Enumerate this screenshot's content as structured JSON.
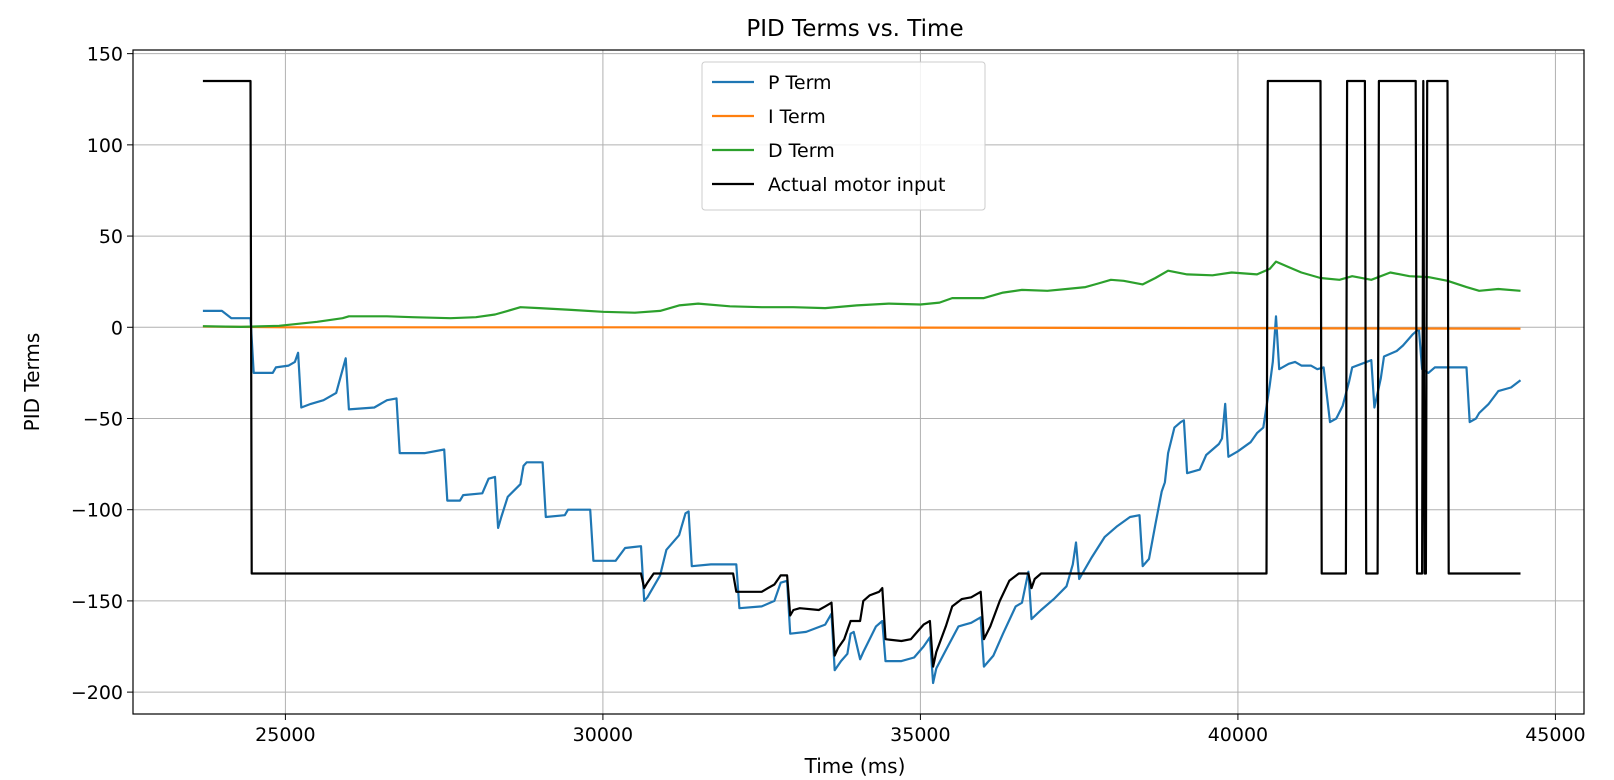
{
  "chart_data": {
    "type": "line",
    "title": "PID Terms vs. Time",
    "xlabel": "Time (ms)",
    "ylabel": "PID Terms",
    "xlim": [
      22600,
      45450
    ],
    "ylim": [
      -212,
      152
    ],
    "xticks": [
      25000,
      30000,
      35000,
      40000,
      45000
    ],
    "yticks": [
      150,
      100,
      50,
      0,
      -50,
      -100,
      -150,
      -200
    ],
    "grid": true,
    "legend_position": "upper center",
    "series": [
      {
        "name": "P Term",
        "color": "#1f77b4",
        "points": [
          [
            23700,
            9
          ],
          [
            24000,
            9
          ],
          [
            24150,
            5
          ],
          [
            24450,
            5
          ],
          [
            24500,
            -25
          ],
          [
            24800,
            -25
          ],
          [
            24850,
            -22
          ],
          [
            25050,
            -21
          ],
          [
            25150,
            -19
          ],
          [
            25200,
            -14
          ],
          [
            25250,
            -44
          ],
          [
            25400,
            -42
          ],
          [
            25600,
            -40
          ],
          [
            25800,
            -36
          ],
          [
            25950,
            -17
          ],
          [
            26000,
            -45
          ],
          [
            26400,
            -44
          ],
          [
            26600,
            -40
          ],
          [
            26750,
            -39
          ],
          [
            26800,
            -69
          ],
          [
            27200,
            -69
          ],
          [
            27500,
            -67
          ],
          [
            27550,
            -95
          ],
          [
            27750,
            -95
          ],
          [
            27800,
            -92
          ],
          [
            28100,
            -91
          ],
          [
            28200,
            -83
          ],
          [
            28300,
            -82
          ],
          [
            28350,
            -110
          ],
          [
            28400,
            -104
          ],
          [
            28500,
            -93
          ],
          [
            28700,
            -86
          ],
          [
            28750,
            -76
          ],
          [
            28800,
            -74
          ],
          [
            29050,
            -74
          ],
          [
            29100,
            -104
          ],
          [
            29400,
            -103
          ],
          [
            29450,
            -100
          ],
          [
            29800,
            -100
          ],
          [
            29850,
            -128
          ],
          [
            30200,
            -128
          ],
          [
            30350,
            -121
          ],
          [
            30600,
            -120
          ],
          [
            30650,
            -150
          ],
          [
            30700,
            -148
          ],
          [
            30900,
            -136
          ],
          [
            31000,
            -122
          ],
          [
            31200,
            -114
          ],
          [
            31300,
            -102
          ],
          [
            31350,
            -101
          ],
          [
            31400,
            -131
          ],
          [
            31700,
            -130
          ],
          [
            32100,
            -130
          ],
          [
            32150,
            -154
          ],
          [
            32500,
            -153
          ],
          [
            32700,
            -150
          ],
          [
            32800,
            -140
          ],
          [
            32900,
            -139
          ],
          [
            32950,
            -168
          ],
          [
            33200,
            -167
          ],
          [
            33500,
            -163
          ],
          [
            33600,
            -157
          ],
          [
            33650,
            -188
          ],
          [
            33750,
            -183
          ],
          [
            33850,
            -179
          ],
          [
            33900,
            -168
          ],
          [
            33950,
            -167
          ],
          [
            34050,
            -182
          ],
          [
            34100,
            -178
          ],
          [
            34300,
            -164
          ],
          [
            34400,
            -161
          ],
          [
            34450,
            -183
          ],
          [
            34700,
            -183
          ],
          [
            34900,
            -181
          ],
          [
            35050,
            -175
          ],
          [
            35150,
            -170
          ],
          [
            35200,
            -195
          ],
          [
            35250,
            -187
          ],
          [
            35400,
            -177
          ],
          [
            35600,
            -164
          ],
          [
            35700,
            -163
          ],
          [
            35800,
            -162
          ],
          [
            35950,
            -159
          ],
          [
            36000,
            -186
          ],
          [
            36150,
            -180
          ],
          [
            36300,
            -168
          ],
          [
            36500,
            -153
          ],
          [
            36600,
            -151
          ],
          [
            36700,
            -134
          ],
          [
            36750,
            -160
          ],
          [
            36900,
            -155
          ],
          [
            37100,
            -149
          ],
          [
            37300,
            -142
          ],
          [
            37400,
            -130
          ],
          [
            37450,
            -118
          ],
          [
            37500,
            -138
          ],
          [
            37700,
            -126
          ],
          [
            37900,
            -115
          ],
          [
            38100,
            -109
          ],
          [
            38300,
            -104
          ],
          [
            38450,
            -103
          ],
          [
            38500,
            -131
          ],
          [
            38600,
            -127
          ],
          [
            38700,
            -108
          ],
          [
            38800,
            -90
          ],
          [
            38850,
            -85
          ],
          [
            38900,
            -69
          ],
          [
            39000,
            -55
          ],
          [
            39100,
            -52
          ],
          [
            39150,
            -51
          ],
          [
            39200,
            -80
          ],
          [
            39400,
            -78
          ],
          [
            39500,
            -70
          ],
          [
            39700,
            -64
          ],
          [
            39750,
            -61
          ],
          [
            39800,
            -42
          ],
          [
            39850,
            -71
          ],
          [
            40000,
            -68
          ],
          [
            40200,
            -63
          ],
          [
            40300,
            -58
          ],
          [
            40400,
            -55
          ],
          [
            40500,
            -32
          ],
          [
            40550,
            -19
          ],
          [
            40600,
            6
          ],
          [
            40650,
            -23
          ],
          [
            40800,
            -20
          ],
          [
            40900,
            -19
          ],
          [
            41000,
            -21
          ],
          [
            41150,
            -21
          ],
          [
            41250,
            -23
          ],
          [
            41350,
            -22
          ],
          [
            41450,
            -52
          ],
          [
            41550,
            -50
          ],
          [
            41650,
            -43
          ],
          [
            41750,
            -30
          ],
          [
            41800,
            -22
          ],
          [
            41950,
            -20
          ],
          [
            42100,
            -18
          ],
          [
            42150,
            -44
          ],
          [
            42250,
            -28
          ],
          [
            42300,
            -16
          ],
          [
            42500,
            -13
          ],
          [
            42600,
            -10
          ],
          [
            42750,
            -4
          ],
          [
            42850,
            -1
          ],
          [
            42900,
            -23
          ],
          [
            43000,
            -25
          ],
          [
            43100,
            -22
          ],
          [
            43300,
            -22
          ],
          [
            43600,
            -22
          ],
          [
            43650,
            -52
          ],
          [
            43750,
            -50
          ],
          [
            43800,
            -47
          ],
          [
            43950,
            -42
          ],
          [
            44100,
            -35
          ],
          [
            44300,
            -33
          ],
          [
            44450,
            -29
          ]
        ]
      },
      {
        "name": "I Term",
        "color": "#ff7f0e",
        "points": [
          [
            23700,
            0.4
          ],
          [
            25000,
            0
          ],
          [
            30000,
            0
          ],
          [
            35000,
            -0.2
          ],
          [
            40000,
            -0.5
          ],
          [
            44450,
            -0.8
          ]
        ]
      },
      {
        "name": "D Term",
        "color": "#2ca02c",
        "points": [
          [
            23700,
            0.6
          ],
          [
            24300,
            0.2
          ],
          [
            24900,
            0.8
          ],
          [
            25500,
            3
          ],
          [
            25900,
            5
          ],
          [
            26000,
            6
          ],
          [
            26600,
            6
          ],
          [
            27000,
            5.5
          ],
          [
            27600,
            5
          ],
          [
            28000,
            5.5
          ],
          [
            28300,
            7
          ],
          [
            28500,
            9
          ],
          [
            28700,
            11
          ],
          [
            29000,
            10.5
          ],
          [
            29500,
            9.5
          ],
          [
            30000,
            8.5
          ],
          [
            30500,
            8
          ],
          [
            30900,
            9
          ],
          [
            31200,
            12
          ],
          [
            31500,
            13
          ],
          [
            32000,
            11.5
          ],
          [
            32500,
            11
          ],
          [
            33000,
            11
          ],
          [
            33500,
            10.5
          ],
          [
            34000,
            12
          ],
          [
            34500,
            13
          ],
          [
            35000,
            12.5
          ],
          [
            35300,
            13.5
          ],
          [
            35500,
            16
          ],
          [
            36000,
            16
          ],
          [
            36300,
            19
          ],
          [
            36600,
            20.5
          ],
          [
            37000,
            20
          ],
          [
            37300,
            21
          ],
          [
            37600,
            22
          ],
          [
            37800,
            24
          ],
          [
            38000,
            26
          ],
          [
            38200,
            25.5
          ],
          [
            38500,
            23.5
          ],
          [
            38700,
            27
          ],
          [
            38900,
            31
          ],
          [
            39200,
            29
          ],
          [
            39600,
            28.5
          ],
          [
            39900,
            30
          ],
          [
            40300,
            29
          ],
          [
            40500,
            32
          ],
          [
            40600,
            36
          ],
          [
            40800,
            33
          ],
          [
            41000,
            30
          ],
          [
            41300,
            27
          ],
          [
            41600,
            26
          ],
          [
            41800,
            28
          ],
          [
            42100,
            26
          ],
          [
            42400,
            30
          ],
          [
            42700,
            28
          ],
          [
            43000,
            27.5
          ],
          [
            43300,
            25.5
          ],
          [
            43600,
            22
          ],
          [
            43800,
            20
          ],
          [
            44100,
            21
          ],
          [
            44450,
            20
          ]
        ]
      },
      {
        "name": "Actual motor input",
        "color": "#000000",
        "points": [
          [
            23700,
            135
          ],
          [
            24450,
            135
          ],
          [
            24470,
            -135
          ],
          [
            30600,
            -135
          ],
          [
            30650,
            -143
          ],
          [
            30700,
            -140
          ],
          [
            30800,
            -135
          ],
          [
            32050,
            -135
          ],
          [
            32100,
            -145
          ],
          [
            32500,
            -145
          ],
          [
            32600,
            -143
          ],
          [
            32700,
            -141
          ],
          [
            32800,
            -136
          ],
          [
            32900,
            -136
          ],
          [
            32950,
            -158
          ],
          [
            33000,
            -155
          ],
          [
            33100,
            -154
          ],
          [
            33400,
            -155
          ],
          [
            33500,
            -153
          ],
          [
            33600,
            -151
          ],
          [
            33650,
            -180
          ],
          [
            33700,
            -176
          ],
          [
            33800,
            -171
          ],
          [
            33850,
            -166
          ],
          [
            33900,
            -161
          ],
          [
            34050,
            -161
          ],
          [
            34100,
            -150
          ],
          [
            34200,
            -147
          ],
          [
            34350,
            -145
          ],
          [
            34400,
            -143
          ],
          [
            34450,
            -171
          ],
          [
            34700,
            -172
          ],
          [
            34850,
            -171
          ],
          [
            34950,
            -167
          ],
          [
            35050,
            -163
          ],
          [
            35150,
            -161
          ],
          [
            35200,
            -186
          ],
          [
            35250,
            -178
          ],
          [
            35400,
            -164
          ],
          [
            35500,
            -153
          ],
          [
            35650,
            -149
          ],
          [
            35800,
            -148
          ],
          [
            35950,
            -145
          ],
          [
            36000,
            -171
          ],
          [
            36100,
            -164
          ],
          [
            36250,
            -150
          ],
          [
            36400,
            -139
          ],
          [
            36550,
            -135
          ],
          [
            36700,
            -135
          ],
          [
            36750,
            -143
          ],
          [
            36800,
            -138
          ],
          [
            36900,
            -135
          ],
          [
            40450,
            -135
          ],
          [
            40470,
            135
          ],
          [
            41300,
            135
          ],
          [
            41320,
            -135
          ],
          [
            41700,
            -135
          ],
          [
            41720,
            135
          ],
          [
            42000,
            135
          ],
          [
            42020,
            -135
          ],
          [
            42200,
            -135
          ],
          [
            42220,
            135
          ],
          [
            42800,
            135
          ],
          [
            42820,
            -135
          ],
          [
            42900,
            -135
          ],
          [
            42920,
            135
          ],
          [
            42940,
            -135
          ],
          [
            42960,
            -135
          ],
          [
            42980,
            135
          ],
          [
            43300,
            135
          ],
          [
            43320,
            -135
          ],
          [
            44450,
            -135
          ]
        ]
      }
    ]
  }
}
